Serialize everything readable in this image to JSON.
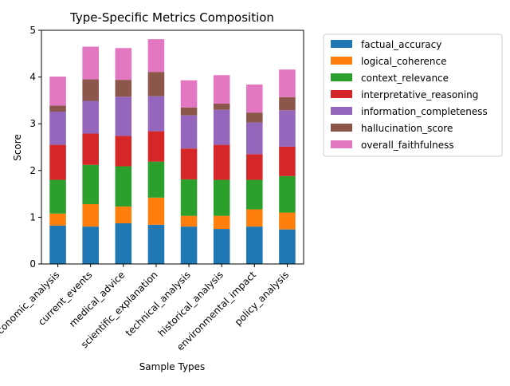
{
  "chart_data": {
    "type": "bar",
    "stacked": true,
    "title": "Type-Specific Metrics Composition",
    "xlabel": "Sample Types",
    "ylabel": "Score",
    "ylim": [
      0,
      5
    ],
    "yticks": [
      "0",
      "1",
      "2",
      "3",
      "4",
      "5"
    ],
    "grid": false,
    "legend_position": "outside-right-top",
    "categories": [
      "economic_analysis",
      "current_events",
      "medical_advice",
      "scientific_explanation",
      "technical_analysis",
      "historical_analysis",
      "environmental_impact",
      "policy_analysis"
    ],
    "series": [
      {
        "name": "factual_accuracy",
        "color": "#1f77b4",
        "values": [
          0.82,
          0.8,
          0.87,
          0.84,
          0.8,
          0.75,
          0.8,
          0.74
        ]
      },
      {
        "name": "logical_coherence",
        "color": "#ff7f0e",
        "values": [
          0.26,
          0.48,
          0.36,
          0.58,
          0.23,
          0.28,
          0.37,
          0.36
        ]
      },
      {
        "name": "context_relevance",
        "color": "#2ca02c",
        "values": [
          0.72,
          0.84,
          0.86,
          0.77,
          0.78,
          0.77,
          0.63,
          0.78
        ]
      },
      {
        "name": "interpretative_reasoning",
        "color": "#d62728",
        "values": [
          0.75,
          0.67,
          0.65,
          0.65,
          0.66,
          0.75,
          0.55,
          0.63
        ]
      },
      {
        "name": "information_completeness",
        "color": "#9467bd",
        "values": [
          0.71,
          0.7,
          0.84,
          0.75,
          0.71,
          0.75,
          0.68,
          0.78
        ]
      },
      {
        "name": "hallucination_score",
        "color": "#8c564b",
        "values": [
          0.13,
          0.46,
          0.36,
          0.52,
          0.17,
          0.13,
          0.21,
          0.28
        ]
      },
      {
        "name": "overall_faithfulness",
        "color": "#e377c2",
        "values": [
          0.62,
          0.7,
          0.68,
          0.7,
          0.58,
          0.61,
          0.6,
          0.59
        ]
      }
    ]
  }
}
